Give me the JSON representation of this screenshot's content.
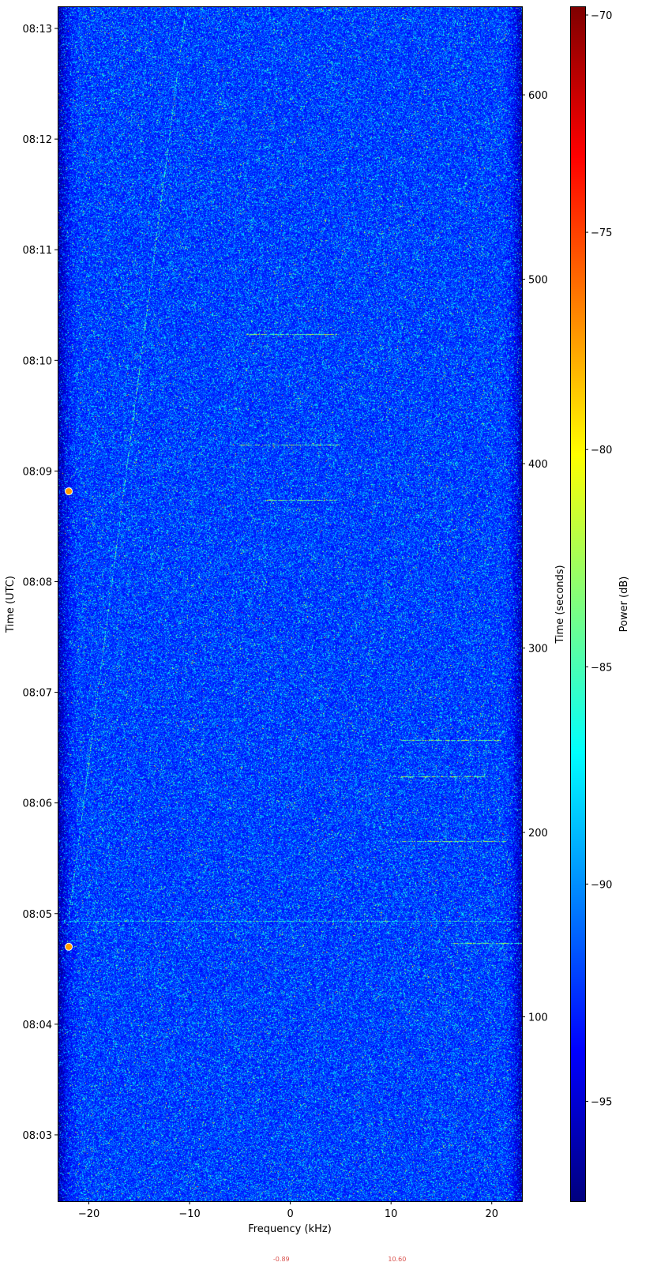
{
  "chart_data": {
    "type": "heatmap",
    "subtype": "spectrogram",
    "xlabel": "Frequency (kHz)",
    "ylabel_left": "Time (UTC)",
    "ylabel_right": "Time (seconds)",
    "colorbar_label": "Power (dB)",
    "colormap": "jet",
    "xlim": [
      -23.1,
      23.0
    ],
    "ylim_seconds": [
      0,
      648
    ],
    "clim": [
      -97.3,
      -69.8
    ],
    "x_ticks": [
      -20,
      -10,
      0,
      10,
      20
    ],
    "x_tick_labels": [
      "−20",
      "−10",
      "0",
      "10",
      "20"
    ],
    "left_ticks_seconds": [
      36,
      96,
      156,
      216,
      276,
      336,
      396,
      456,
      516,
      576,
      636
    ],
    "left_tick_labels": [
      "08:03",
      "08:04",
      "08:05",
      "08:06",
      "08:07",
      "08:08",
      "08:09",
      "08:10",
      "08:11",
      "08:12",
      "08:13"
    ],
    "right_ticks": [
      100,
      200,
      300,
      400,
      500,
      600
    ],
    "right_tick_labels": [
      "100",
      "200",
      "300",
      "400",
      "500",
      "600"
    ],
    "colorbar_ticks": [
      -95,
      -90,
      -85,
      -80,
      -75,
      -70
    ],
    "colorbar_tick_labels": [
      "−95",
      "−90",
      "−85",
      "−80",
      "−75",
      "−70"
    ],
    "background_power_db": -93,
    "markers": [
      {
        "freq_khz": -22.0,
        "time_s": 385,
        "color": "#ff9900"
      },
      {
        "freq_khz": -22.0,
        "time_s": 138,
        "color": "#ff9900"
      }
    ],
    "signals": [
      {
        "type": "drift",
        "freq_start_khz": -22.0,
        "time_start_s": 153,
        "freq_end_khz": -10.4,
        "time_end_s": 645
      },
      {
        "type": "burst",
        "freq_khz": [
          -4.9,
          4.9
        ],
        "time_s": 470
      },
      {
        "type": "burst",
        "freq_khz": [
          -5.0,
          5.0
        ],
        "time_s": 410
      },
      {
        "type": "burst",
        "freq_khz": [
          -2.5,
          4.5
        ],
        "time_s": 380
      },
      {
        "type": "burst",
        "freq_khz": [
          11.0,
          21.0
        ],
        "time_s": 250
      },
      {
        "type": "burst",
        "freq_khz": [
          11.0,
          19.5
        ],
        "time_s": 230
      },
      {
        "type": "burst",
        "freq_khz": [
          11.0,
          21.5
        ],
        "time_s": 195
      },
      {
        "type": "burst",
        "freq_khz": [
          16.0,
          23.0
        ],
        "time_s": 140
      },
      {
        "type": "burst",
        "freq_khz": [
          -23.0,
          23.0
        ],
        "time_s": 152
      }
    ],
    "bottom_annotations": [
      {
        "text": "-0.89",
        "freq_khz": -0.89,
        "color": "#d9534f"
      },
      {
        "text": "10.60",
        "freq_khz": 10.6,
        "color": "#d9534f"
      }
    ]
  }
}
